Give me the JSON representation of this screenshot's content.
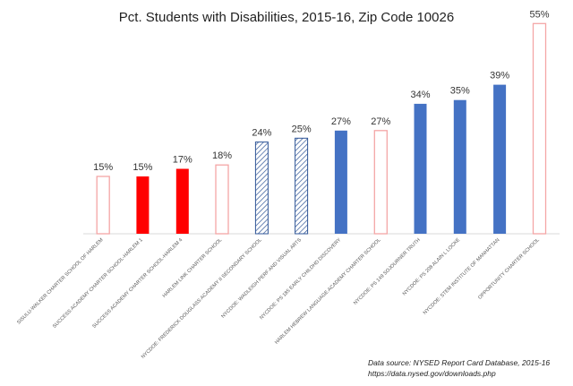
{
  "chart_data": {
    "type": "bar",
    "title": "Pct. Students with Disabilities, 2015-16, Zip Code 10026",
    "xlabel": "",
    "ylabel": "",
    "ylim": [
      0,
      60
    ],
    "grid": false,
    "legend": "none",
    "categories": [
      "SISULU-WALKER CHARTER SCHOOL OF HARLEM",
      "SUCCESS ACADEMY CHARTER SCHOOL-HARLEM 1",
      "SUCCESS ACADEMY CHARTER SCHOOL-HARLEM 4",
      "HARLEM LINK CHARTER SCHOOL",
      "NYCDOE: FREDERICK DOUGLASS ACADEMY II SECONDARY SCHOOL",
      "NYCDOE: WADLEIGH PERF AND VISUAL ARTS",
      "NYCDOE: PS 185 EARLY CHILDHD DISCOVERY",
      "HARLEM HEBREW LANGUAGE ACADEMY CHARTER SCHOOL",
      "NYCDOE: PS 149 SOJOURNER TRUTH",
      "NYCDOE: PS 208 ALAIN L LOCKE",
      "NYCDOE: STEM INSTITUTE OF MANHATTAN",
      "OPPORTUNITY CHARTER SCHOOL"
    ],
    "values": [
      15,
      15,
      17,
      18,
      24,
      25,
      27,
      27,
      34,
      35,
      39,
      55
    ],
    "data_labels": [
      "15%",
      "15%",
      "17%",
      "18%",
      "24%",
      "25%",
      "27%",
      "27%",
      "34%",
      "35%",
      "39%",
      "55%"
    ],
    "bar_styles": [
      "red-outline",
      "red-solid",
      "red-solid",
      "red-outline",
      "blue-hatched",
      "blue-hatched",
      "blue-solid",
      "red-outline",
      "blue-solid",
      "blue-solid",
      "blue-solid",
      "red-outline"
    ]
  },
  "colors": {
    "red": "#ff0000",
    "red_outline": "#f4a6a6",
    "blue": "#4472c4",
    "blue_hatch": "#2f5597",
    "axis": "#d9d9d9"
  },
  "source": {
    "line1": "Data source: NYSED Report Card Database, 2015-16",
    "line2": "https://data.nysed.gov/downloads.php"
  }
}
